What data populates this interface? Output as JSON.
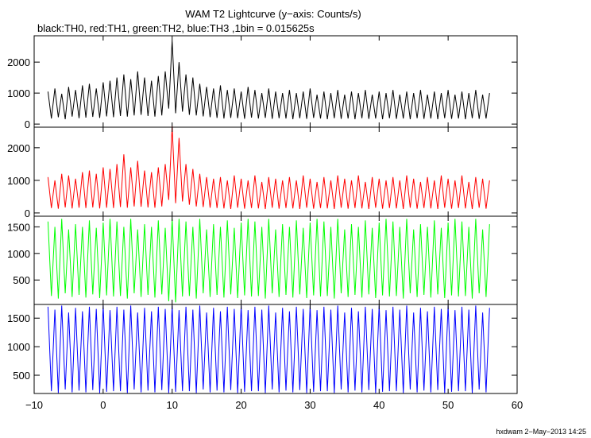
{
  "chart_data": {
    "type": "line",
    "title": "WAM T2 Lightcurve (y−axis: Counts/s)",
    "subtitle": "black:TH0, red:TH1, green:TH2, blue:TH3 ,1bin = 0.015625s",
    "x": [
      -8,
      -7.5,
      -7,
      -6.5,
      -6,
      -5.5,
      -5,
      -4.5,
      -4,
      -3.5,
      -3,
      -2.5,
      -2,
      -1.5,
      -1,
      -0.5,
      0,
      0.5,
      1,
      1.5,
      2,
      2.5,
      3,
      3.5,
      4,
      4.5,
      5,
      5.5,
      6,
      6.5,
      7,
      7.5,
      8,
      8.5,
      9,
      9.5,
      10,
      10.5,
      11,
      11.5,
      12,
      12.5,
      13,
      13.5,
      14,
      14.5,
      15,
      15.5,
      16,
      16.5,
      17,
      17.5,
      18,
      18.5,
      19,
      19.5,
      20,
      20.5,
      21,
      21.5,
      22,
      22.5,
      23,
      23.5,
      24,
      24.5,
      25,
      25.5,
      26,
      26.5,
      27,
      27.5,
      28,
      28.5,
      29,
      29.5,
      30,
      30.5,
      31,
      31.5,
      32,
      32.5,
      33,
      33.5,
      34,
      34.5,
      35,
      35.5,
      36,
      36.5,
      37,
      37.5,
      38,
      38.5,
      39,
      39.5,
      40,
      40.5,
      41,
      41.5,
      42,
      42.5,
      43,
      43.5,
      44,
      44.5,
      45,
      45.5,
      46,
      46.5,
      47,
      47.5,
      48,
      48.5,
      49,
      49.5,
      50,
      50.5,
      51,
      51.5,
      52,
      52.5,
      53,
      53.5,
      54,
      54.5,
      55,
      55.5,
      56
    ],
    "xlim": [
      -10,
      60
    ],
    "xticks": [
      {
        "value": -10,
        "label": "−10"
      },
      0,
      10,
      20,
      30,
      40,
      50,
      60
    ],
    "series": [
      {
        "color": "#000000",
        "ylim": [
          -100,
          2850
        ],
        "yticks": [
          0,
          1000,
          2000
        ],
        "values": [
          1050,
          180,
          1150,
          220,
          980,
          160,
          1200,
          240,
          1100,
          190,
          1250,
          210,
          1300,
          230,
          1150,
          200,
          1350,
          250,
          1400,
          220,
          1500,
          260,
          1600,
          240,
          1450,
          280,
          1700,
          300,
          1500,
          260,
          1400,
          240,
          1550,
          280,
          1700,
          500,
          2700,
          350,
          2000,
          400,
          1600,
          300,
          1500,
          280,
          1300,
          250,
          1200,
          220,
          1150,
          200,
          1250,
          180,
          1100,
          200,
          1150,
          190,
          1050,
          170,
          1200,
          210,
          1100,
          180,
          1000,
          200,
          1150,
          170,
          1050,
          190,
          1000,
          180,
          1100,
          160,
          1000,
          190,
          1050,
          170,
          1150,
          200,
          950,
          180,
          1050,
          160,
          1000,
          190,
          1100,
          170,
          950,
          180,
          1050,
          160,
          1000,
          190,
          1100,
          170,
          950,
          180,
          1050,
          160,
          1000,
          190,
          1100,
          170,
          950,
          180,
          1050,
          160,
          1000,
          190,
          1100,
          170,
          950,
          180,
          1050,
          160,
          1000,
          190,
          1100,
          170,
          950,
          180,
          1050,
          160,
          1000,
          190,
          1100,
          170,
          950,
          180,
          1000
        ]
      },
      {
        "color": "#ff0000",
        "ylim": [
          -100,
          2630
        ],
        "yticks": [
          0,
          1000,
          2000
        ],
        "values": [
          1100,
          150,
          1000,
          130,
          1200,
          170,
          1150,
          140,
          1050,
          160,
          1250,
          150,
          1300,
          170,
          1200,
          140,
          1400,
          160,
          1350,
          150,
          1500,
          180,
          1800,
          160,
          1400,
          200,
          1600,
          190,
          1300,
          170,
          1250,
          160,
          1400,
          200,
          1500,
          400,
          2650,
          300,
          2300,
          350,
          1500,
          250,
          1350,
          200,
          1200,
          180,
          1100,
          160,
          1050,
          150,
          1100,
          140,
          1000,
          120,
          1150,
          160,
          1050,
          130,
          1000,
          150,
          1150,
          140,
          950,
          120,
          1100,
          160,
          1050,
          130,
          1000,
          150,
          1100,
          140,
          1000,
          120,
          1150,
          160,
          1050,
          130,
          950,
          150,
          1100,
          140,
          1000,
          120,
          1150,
          160,
          1050,
          130,
          1000,
          150,
          1150,
          140,
          950,
          120,
          1100,
          160,
          1050,
          130,
          1000,
          150,
          1100,
          140,
          1000,
          120,
          1150,
          160,
          1050,
          130,
          950,
          150,
          1100,
          140,
          1000,
          120,
          1150,
          160,
          1050,
          130,
          1000,
          150,
          1150,
          140,
          950,
          120,
          1100,
          160,
          1050,
          130,
          1000
        ]
      },
      {
        "color": "#00ff00",
        "ylim": [
          40,
          1700
        ],
        "yticks": [
          500,
          1000,
          1500
        ],
        "values": [
          1600,
          200,
          1500,
          150,
          1650,
          250,
          1450,
          180,
          1550,
          220,
          1500,
          170,
          1620,
          230,
          1480,
          160,
          1580,
          210,
          1650,
          190,
          1600,
          200,
          1500,
          150,
          1650,
          250,
          1450,
          180,
          1550,
          220,
          1500,
          170,
          1620,
          230,
          1480,
          100,
          1650,
          80,
          1650,
          190,
          1600,
          200,
          1500,
          150,
          1650,
          250,
          1450,
          180,
          1550,
          220,
          1500,
          170,
          1620,
          230,
          1480,
          160,
          1580,
          210,
          1650,
          190,
          1600,
          200,
          1500,
          150,
          1650,
          250,
          1450,
          180,
          1550,
          220,
          1500,
          170,
          1620,
          230,
          1480,
          160,
          1580,
          210,
          1650,
          190,
          1600,
          200,
          1500,
          150,
          1650,
          250,
          1450,
          180,
          1550,
          220,
          1500,
          170,
          1620,
          230,
          1480,
          160,
          1580,
          210,
          1650,
          190,
          1600,
          200,
          1500,
          150,
          1650,
          250,
          1450,
          180,
          1550,
          220,
          1500,
          170,
          1620,
          230,
          1480,
          160,
          1580,
          210,
          1650,
          190,
          1600,
          200,
          1500,
          150,
          1650,
          250,
          1450,
          180,
          1550
        ]
      },
      {
        "color": "#0000ff",
        "ylim": [
          180,
          1740
        ],
        "yticks": [
          500,
          1000,
          1500
        ],
        "values": [
          1700,
          220,
          1650,
          190,
          1720,
          250,
          1600,
          200,
          1680,
          230,
          1620,
          200,
          1700,
          240,
          1660,
          190,
          1720,
          210,
          1640,
          220,
          1700,
          220,
          1650,
          190,
          1720,
          250,
          1600,
          200,
          1680,
          230,
          1620,
          200,
          1700,
          240,
          1660,
          190,
          1720,
          210,
          1640,
          220,
          1700,
          220,
          1650,
          190,
          1720,
          250,
          1600,
          200,
          1680,
          230,
          1620,
          200,
          1700,
          240,
          1660,
          190,
          1720,
          210,
          1640,
          220,
          1700,
          220,
          1650,
          190,
          1720,
          250,
          1600,
          200,
          1680,
          230,
          1620,
          200,
          1700,
          240,
          1660,
          190,
          1720,
          210,
          1640,
          220,
          1700,
          220,
          1650,
          190,
          1720,
          250,
          1600,
          200,
          1680,
          230,
          1620,
          200,
          1700,
          240,
          1660,
          190,
          1720,
          210,
          1640,
          220,
          1700,
          220,
          1650,
          190,
          1720,
          250,
          1600,
          200,
          1680,
          230,
          1620,
          200,
          1700,
          240,
          1660,
          190,
          1720,
          210,
          1640,
          220,
          1700,
          220,
          1650,
          190,
          1720,
          250,
          1600,
          200,
          1680
        ]
      }
    ]
  },
  "footer": "hxdwam 2−May−2013 14:25"
}
